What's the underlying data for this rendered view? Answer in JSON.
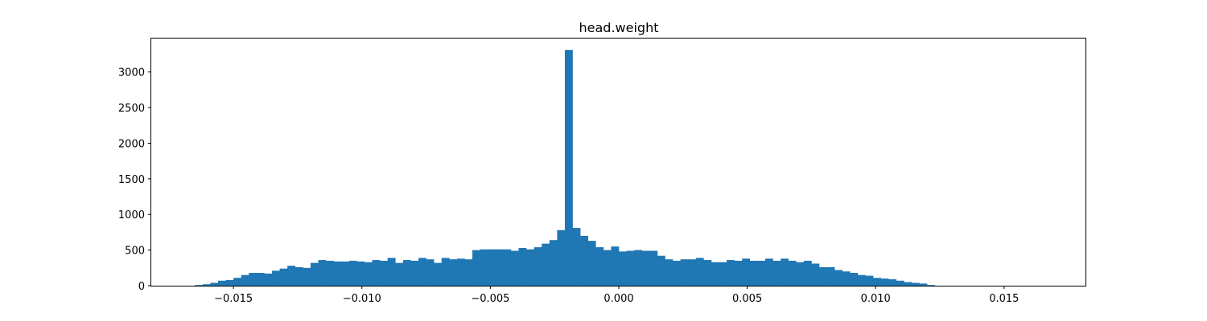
{
  "chart_data": {
    "type": "bar",
    "title": "head.weight",
    "xlabel": "",
    "ylabel": "",
    "xlim": [
      -0.0182,
      0.0182
    ],
    "ylim": [
      0,
      3470
    ],
    "xticks": [
      -0.015,
      -0.01,
      -0.005,
      0.0,
      0.005,
      0.01,
      0.015
    ],
    "xtick_labels": [
      "−0.015",
      "−0.010",
      "−0.005",
      "0.000",
      "0.005",
      "0.010",
      "0.015"
    ],
    "yticks": [
      0,
      500,
      1000,
      1500,
      2000,
      2500,
      3000
    ],
    "ytick_labels": [
      "0",
      "500",
      "1000",
      "1500",
      "2000",
      "2500",
      "3000"
    ],
    "bin_start": -0.0165,
    "bin_width": 0.0003,
    "counts": [
      10,
      20,
      40,
      70,
      80,
      110,
      150,
      180,
      180,
      170,
      210,
      240,
      280,
      260,
      250,
      320,
      360,
      350,
      340,
      340,
      350,
      340,
      330,
      360,
      350,
      390,
      320,
      360,
      350,
      390,
      370,
      320,
      390,
      370,
      380,
      370,
      500,
      510,
      510,
      510,
      510,
      490,
      530,
      510,
      540,
      590,
      640,
      780,
      3310,
      810,
      700,
      630,
      540,
      500,
      550,
      480,
      490,
      500,
      490,
      490,
      420,
      370,
      350,
      370,
      370,
      390,
      360,
      330,
      330,
      360,
      350,
      380,
      350,
      350,
      380,
      350,
      380,
      350,
      330,
      350,
      310,
      260,
      260,
      220,
      200,
      180,
      150,
      140,
      110,
      100,
      90,
      70,
      50,
      40,
      30,
      10
    ],
    "bar_color": "#1f77b4",
    "grid": false,
    "legend": "none"
  }
}
